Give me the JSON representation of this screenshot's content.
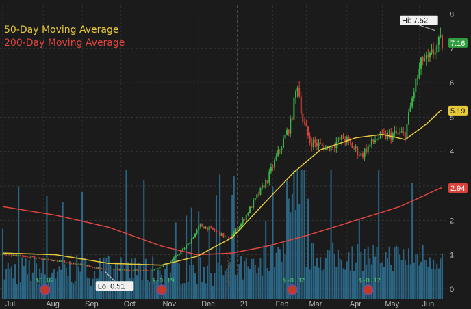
{
  "chart_data": {
    "type": "candlestick",
    "title": "",
    "xlabel": "",
    "ylabel": "",
    "ylim": [
      -0.3,
      8.25
    ],
    "y_ticks": [
      0,
      1,
      2,
      3,
      4,
      5,
      6,
      7,
      8
    ],
    "grid": true,
    "x_labels": [
      "Jul",
      "Aug",
      "Sep",
      "Oct",
      "Nov",
      "Dec",
      "21",
      "Feb",
      "Mar",
      "Apr",
      "May",
      "Jun"
    ],
    "x_label_index": [
      0,
      23,
      45,
      67,
      89,
      111,
      133,
      153,
      172,
      195,
      215,
      236
    ],
    "year_divider_index": 133,
    "watermark": "2020 year",
    "legend": [
      {
        "name": "50-Day Moving Average",
        "color": "#e8c93a"
      },
      {
        "name": "200-Day Moving Average",
        "color": "#e2443f"
      }
    ],
    "price_tags": [
      {
        "value": 7.16,
        "label": "7.16",
        "color": "#2e9e3e"
      },
      {
        "value": 5.19,
        "label": "5.19",
        "color": "#e8c93a"
      },
      {
        "value": 2.94,
        "label": "2.94",
        "color": "#d9413b"
      }
    ],
    "annotations": [
      {
        "label": "Hi: 7.52",
        "value": 7.52,
        "index": 245
      },
      {
        "label": "Lo: 0.51",
        "value": 0.51,
        "index": 58
      }
    ],
    "events": [
      {
        "label": "$0.02",
        "index": 24
      },
      {
        "label": "$-0.19",
        "index": 90
      },
      {
        "label": "$-0.32",
        "index": 164
      },
      {
        "label": "$-0.12",
        "index": 207
      }
    ],
    "price_anchors": [
      [
        0,
        1.0
      ],
      [
        20,
        0.9
      ],
      [
        40,
        0.75
      ],
      [
        55,
        0.6
      ],
      [
        70,
        0.55
      ],
      [
        85,
        0.55
      ],
      [
        95,
        0.8
      ],
      [
        105,
        1.3
      ],
      [
        112,
        1.85
      ],
      [
        120,
        1.7
      ],
      [
        128,
        1.45
      ],
      [
        135,
        1.9
      ],
      [
        143,
        2.6
      ],
      [
        150,
        3.2
      ],
      [
        158,
        4.2
      ],
      [
        163,
        4.8
      ],
      [
        167,
        6.0
      ],
      [
        170,
        4.9
      ],
      [
        174,
        4.3
      ],
      [
        184,
        4.1
      ],
      [
        193,
        4.4
      ],
      [
        203,
        3.9
      ],
      [
        212,
        4.4
      ],
      [
        222,
        4.5
      ],
      [
        228,
        4.5
      ],
      [
        233,
        5.8
      ],
      [
        238,
        6.7
      ],
      [
        241,
        6.6
      ],
      [
        245,
        7.0
      ],
      [
        248,
        7.16
      ]
    ],
    "ma50_anchors": [
      [
        0,
        1.05
      ],
      [
        30,
        1.0
      ],
      [
        60,
        0.75
      ],
      [
        90,
        0.7
      ],
      [
        110,
        0.95
      ],
      [
        130,
        1.5
      ],
      [
        150,
        2.6
      ],
      [
        165,
        3.4
      ],
      [
        180,
        4.05
      ],
      [
        200,
        4.4
      ],
      [
        215,
        4.5
      ],
      [
        228,
        4.35
      ],
      [
        240,
        4.8
      ],
      [
        248,
        5.19
      ]
    ],
    "ma200_anchors": [
      [
        0,
        2.4
      ],
      [
        30,
        2.15
      ],
      [
        60,
        1.8
      ],
      [
        90,
        1.25
      ],
      [
        110,
        1.0
      ],
      [
        130,
        1.05
      ],
      [
        150,
        1.25
      ],
      [
        175,
        1.6
      ],
      [
        200,
        2.0
      ],
      [
        225,
        2.4
      ],
      [
        248,
        2.94
      ]
    ],
    "volume_ylim": [
      0,
      1
    ]
  }
}
